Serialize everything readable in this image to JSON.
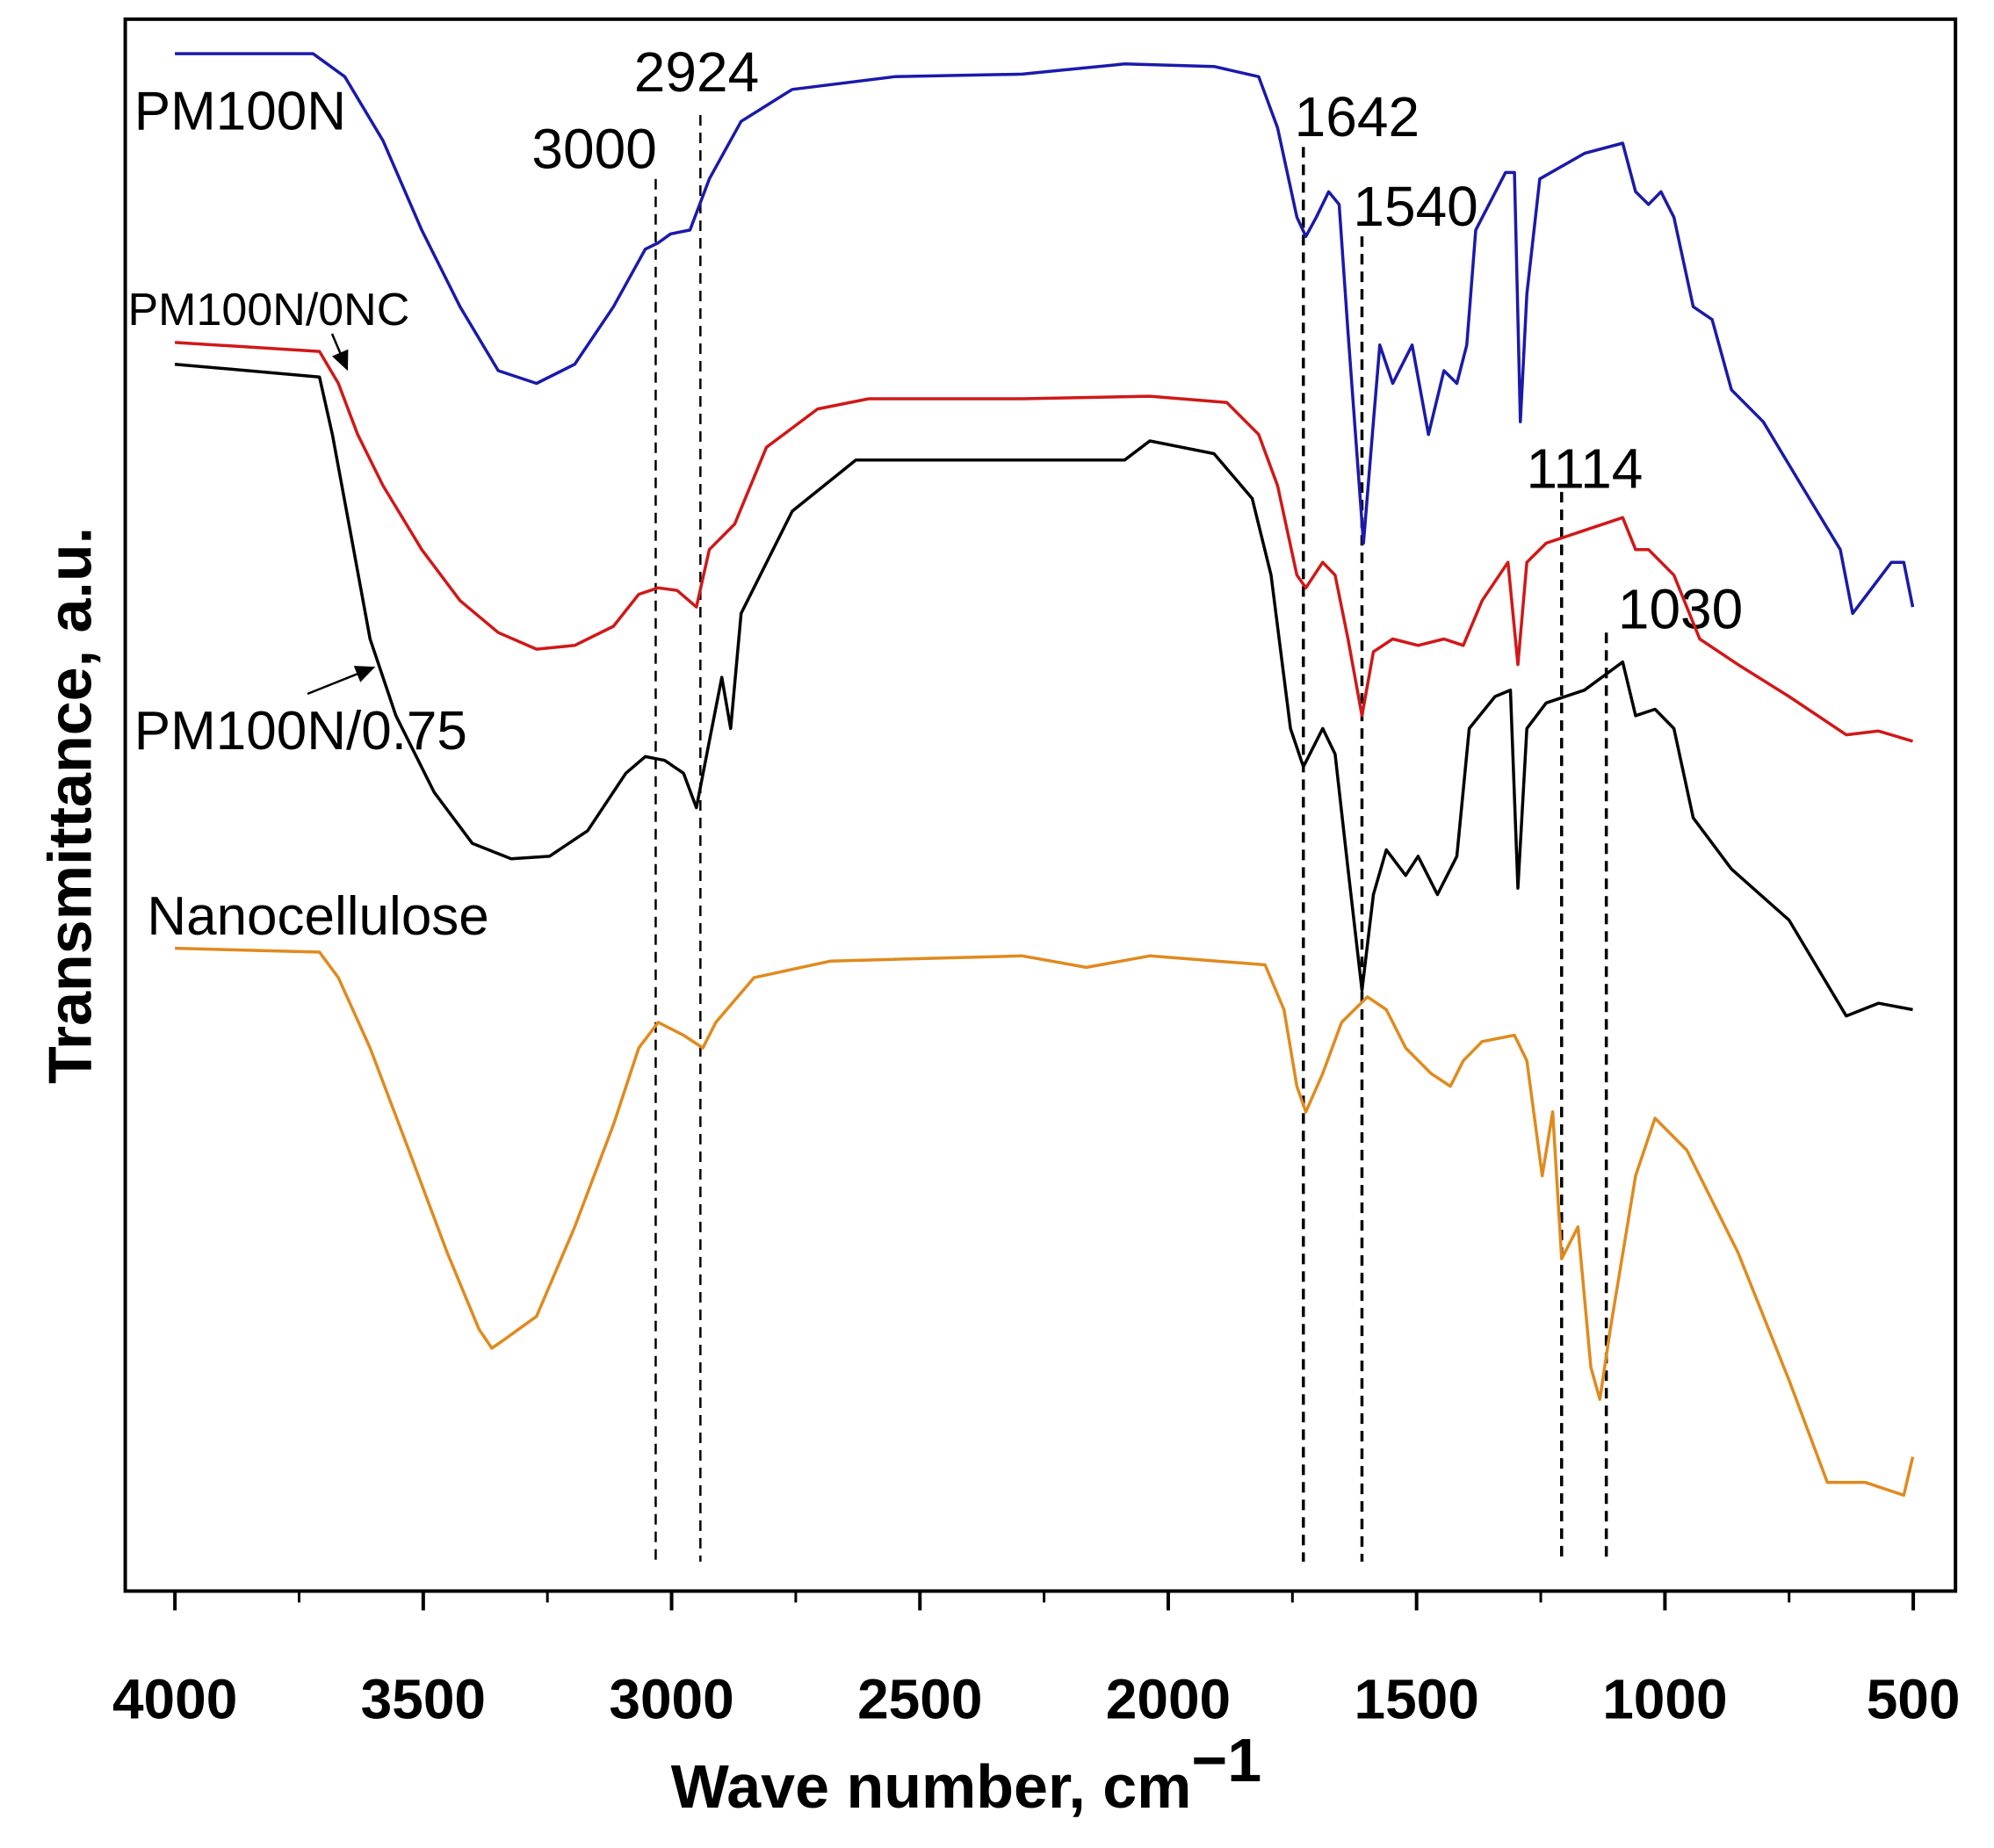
{
  "chart_data": {
    "type": "line",
    "x_label": "Wave number, cm",
    "x_label_exponent": "−1",
    "y_label": "Transmittance, a.u.",
    "xlim": [
      4100,
      415
    ],
    "xticks": [
      4000,
      3500,
      3000,
      2500,
      2000,
      1500,
      1000,
      500
    ],
    "xticks_minor": [
      3750,
      3250,
      2750,
      2250,
      1750,
      1250,
      750
    ],
    "x_reversed": true,
    "ylim": [
      0,
      1230
    ],
    "grid": false,
    "annotations": [
      {
        "text": "3000",
        "x": 3032
      },
      {
        "text": "2924",
        "x": 2942
      },
      {
        "text": "1642",
        "x": 1728
      },
      {
        "text": "1540",
        "x": 1610
      },
      {
        "text": "1114",
        "x": 1208
      },
      {
        "text": "1030",
        "x": 1118
      }
    ],
    "series": [
      {
        "name": "PM100N",
        "color": "#1a1aaa",
        "x": [
          4000,
          3722,
          3658,
          3581,
          3503,
          3426,
          3349,
          3272,
          3195,
          3117,
          3053,
          3027,
          3002,
          2963,
          2924,
          2860,
          2757,
          2551,
          2294,
          2217,
          2088,
          1908,
          1818,
          1780,
          1741,
          1723,
          1702,
          1677,
          1656,
          1638,
          1607,
          1587,
          1574,
          1548,
          1509,
          1476,
          1445,
          1419,
          1399,
          1381,
          1321,
          1303,
          1291,
          1278,
          1252,
          1162,
          1085,
          1059,
          1033,
          1008,
          982,
          943,
          905,
          866,
          802,
          725,
          647,
          622,
          544,
          519,
          501
        ],
        "values": [
          1203,
          1203,
          1185,
          1135,
          1065,
          1005,
          955,
          945,
          960,
          1005,
          1050,
          1055,
          1062,
          1065,
          1105,
          1150,
          1175,
          1185,
          1187,
          1190,
          1195,
          1193,
          1185,
          1145,
          1075,
          1060,
          1075,
          1095,
          1085,
          985,
          820,
          915,
          975,
          945,
          975,
          905,
          955,
          945,
          975,
          1065,
          1110,
          1110,
          915,
          1015,
          1105,
          1125,
          1133,
          1095,
          1085,
          1095,
          1075,
          1005,
          995,
          940,
          915,
          865,
          815,
          765,
          805,
          805,
          770
        ]
      },
      {
        "name": "PM100N/0NC",
        "color": "#d01818",
        "x": [
          4000,
          3709,
          3671,
          3632,
          3581,
          3503,
          3426,
          3349,
          3272,
          3195,
          3117,
          3066,
          3027,
          2989,
          2950,
          2924,
          2873,
          2809,
          2706,
          2603,
          2294,
          2037,
          1882,
          1818,
          1780,
          1741,
          1723,
          1689,
          1664,
          1638,
          1610,
          1587,
          1548,
          1497,
          1445,
          1406,
          1368,
          1316,
          1296,
          1278,
          1239,
          1162,
          1085,
          1059,
          1033,
          982,
          930,
          853,
          750,
          635,
          570,
          501
        ],
        "values": [
          977,
          970,
          945,
          905,
          865,
          815,
          775,
          750,
          737,
          740,
          755,
          780,
          785,
          783,
          770,
          815,
          835,
          895,
          925,
          933,
          933,
          935,
          930,
          905,
          865,
          795,
          785,
          805,
          795,
          745,
          685,
          735,
          745,
          740,
          745,
          740,
          775,
          805,
          725,
          805,
          820,
          830,
          840,
          815,
          815,
          795,
          745,
          725,
          700,
          670,
          673,
          665
        ]
      },
      {
        "name": "PM100N/0.75",
        "color": "#000000",
        "x": [
          4000,
          3709,
          3683,
          3645,
          3607,
          3555,
          3478,
          3401,
          3323,
          3246,
          3169,
          3092,
          3053,
          3014,
          2976,
          2950,
          2924,
          2899,
          2881,
          2860,
          2757,
          2629,
          2088,
          2037,
          1908,
          1831,
          1793,
          1754,
          1728,
          1689,
          1664,
          1638,
          1610,
          1587,
          1561,
          1522,
          1497,
          1458,
          1419,
          1394,
          1342,
          1311,
          1296,
          1278,
          1239,
          1162,
          1085,
          1059,
          1020,
          982,
          943,
          866,
          750,
          635,
          570,
          501
        ],
        "values": [
          960,
          950,
          905,
          825,
          745,
          685,
          625,
          585,
          573,
          575,
          595,
          640,
          653,
          650,
          640,
          613,
          665,
          715,
          675,
          765,
          845,
          885,
          885,
          900,
          890,
          855,
          795,
          675,
          645,
          675,
          655,
          565,
          470,
          545,
          580,
          560,
          575,
          545,
          575,
          675,
          700,
          705,
          550,
          675,
          695,
          705,
          727,
          685,
          690,
          675,
          605,
          565,
          525,
          450,
          460,
          455
        ]
      },
      {
        "name": "Nanocellulose",
        "color": "#e08a1e",
        "x": [
          4000,
          3709,
          3671,
          3607,
          3529,
          3452,
          3388,
          3362,
          3336,
          3272,
          3195,
          3117,
          3066,
          3027,
          2976,
          2937,
          2911,
          2834,
          2680,
          2294,
          2165,
          2037,
          1805,
          1767,
          1741,
          1723,
          1689,
          1651,
          1599,
          1561,
          1522,
          1471,
          1432,
          1406,
          1368,
          1303,
          1278,
          1247,
          1226,
          1208,
          1175,
          1149,
          1131,
          1110,
          1059,
          1020,
          956,
          853,
          750,
          673,
          596,
          519,
          501
        ],
        "values": [
          503,
          500,
          480,
          425,
          345,
          265,
          205,
          190,
          197,
          215,
          285,
          365,
          425,
          445,
          435,
          425,
          445,
          480,
          493,
          497,
          488,
          497,
          490,
          455,
          395,
          375,
          405,
          445,
          465,
          455,
          425,
          405,
          395,
          415,
          430,
          435,
          415,
          325,
          375,
          260,
          285,
          175,
          150,
          205,
          325,
          370,
          345,
          265,
          165,
          85,
          85,
          75,
          105
        ]
      }
    ]
  }
}
